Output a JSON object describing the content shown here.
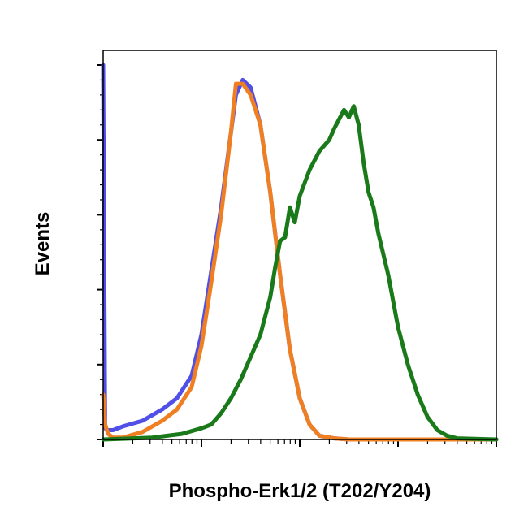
{
  "chart_data": {
    "type": "line",
    "title": "",
    "xlabel": "Phospho-Erk1/2 (T202/Y204)",
    "ylabel": "Events",
    "x_scale": "log",
    "x_decades": 4,
    "ylim": [
      0,
      100
    ],
    "grid": false,
    "legend": "none",
    "series": [
      {
        "color": "#5050e8",
        "x": [
          0,
          0.02,
          0.05,
          0.1,
          0.2,
          0.4,
          0.6,
          0.75,
          0.9,
          1.0,
          1.1,
          1.2,
          1.3,
          1.35,
          1.42,
          1.5,
          1.6,
          1.7,
          1.8,
          1.9,
          2.0,
          2.1,
          2.2,
          2.35,
          2.5,
          2.7,
          3.0,
          3.5,
          4.0
        ],
        "y": [
          100,
          3,
          2.5,
          2.5,
          3.5,
          5,
          8,
          11,
          17,
          28,
          45,
          62,
          82,
          92,
          96,
          94,
          84,
          66,
          44,
          24,
          11,
          4,
          1,
          0.3,
          0,
          0,
          0,
          0,
          0
        ]
      },
      {
        "color": "#f07f22",
        "x": [
          0,
          0.02,
          0.05,
          0.1,
          0.2,
          0.4,
          0.6,
          0.75,
          0.9,
          1.0,
          1.1,
          1.2,
          1.3,
          1.35,
          1.42,
          1.5,
          1.6,
          1.7,
          1.8,
          1.9,
          2.0,
          2.1,
          2.2,
          2.35,
          2.5,
          2.7,
          3.0,
          3.5,
          4.0
        ],
        "y": [
          12,
          4,
          1.5,
          0.5,
          0.5,
          2,
          5,
          8,
          14,
          25,
          42,
          60,
          82,
          95,
          95,
          92,
          84,
          66,
          44,
          24,
          11,
          4,
          1,
          0.3,
          0,
          0,
          0,
          0,
          0
        ]
      },
      {
        "color": "#1a7a1a",
        "x": [
          0,
          0.2,
          0.5,
          0.8,
          1.0,
          1.1,
          1.2,
          1.3,
          1.4,
          1.5,
          1.6,
          1.7,
          1.75,
          1.8,
          1.85,
          1.9,
          1.95,
          2.0,
          2.1,
          2.2,
          2.3,
          2.35,
          2.45,
          2.5,
          2.55,
          2.6,
          2.65,
          2.7,
          2.75,
          2.8,
          2.9,
          3.0,
          3.1,
          3.2,
          3.3,
          3.4,
          3.5,
          3.6,
          4.0
        ],
        "y": [
          0,
          0.2,
          0.5,
          1.5,
          3,
          4,
          7,
          11,
          16,
          22,
          28,
          38,
          46,
          53,
          54,
          62,
          58,
          65,
          72,
          77,
          80,
          83,
          88,
          86,
          89,
          84,
          74,
          66,
          62,
          55,
          44,
          30,
          20,
          12,
          6,
          2.5,
          1,
          0.3,
          0
        ]
      }
    ]
  }
}
